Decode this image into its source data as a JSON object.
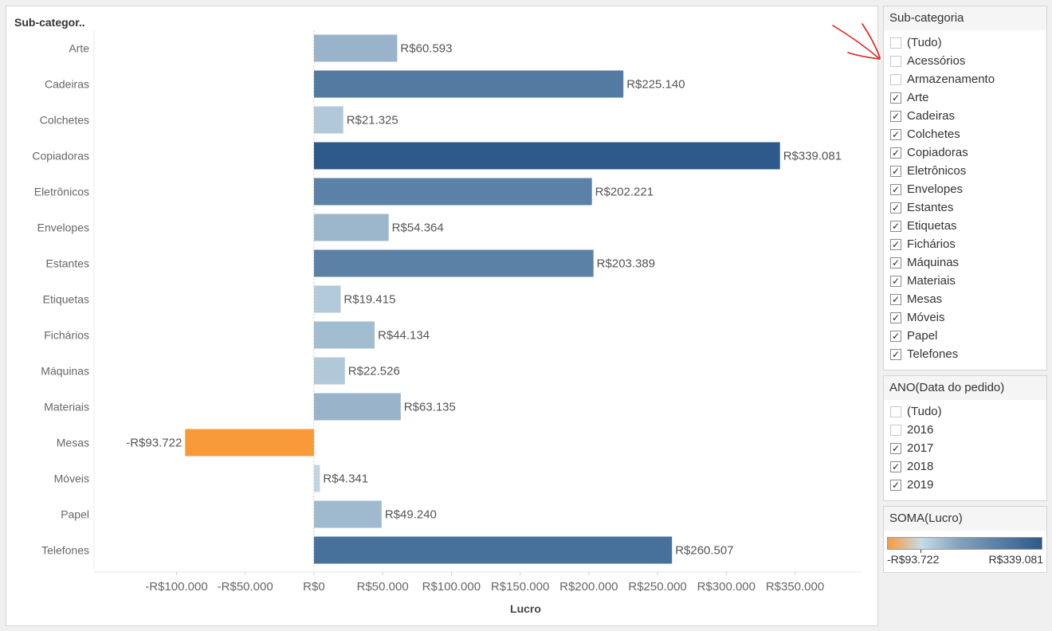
{
  "chart_data": {
    "type": "bar",
    "orientation": "horizontal",
    "row_header": "Sub-categor..",
    "categories": [
      "Arte",
      "Cadeiras",
      "Colchetes",
      "Copiadoras",
      "Eletrônicos",
      "Envelopes",
      "Estantes",
      "Etiquetas",
      "Fichários",
      "Máquinas",
      "Materiais",
      "Mesas",
      "Móveis",
      "Papel",
      "Telefones"
    ],
    "values": [
      60593,
      225140,
      21325,
      339081,
      202221,
      54364,
      203389,
      19415,
      44134,
      22526,
      63135,
      -93722,
      4341,
      49240,
      260507
    ],
    "value_labels": [
      "R$60.593",
      "R$225.140",
      "R$21.325",
      "R$339.081",
      "R$202.221",
      "R$54.364",
      "R$203.389",
      "R$19.415",
      "R$44.134",
      "R$22.526",
      "R$63.135",
      "-R$93.722",
      "R$4.341",
      "R$49.240",
      "R$260.507"
    ],
    "xlabel": "Lucro",
    "x_ticks": [
      -100000,
      -50000,
      0,
      50000,
      100000,
      150000,
      200000,
      250000,
      300000,
      350000
    ],
    "x_tick_labels": [
      "-R$100.000",
      "-R$50.000",
      "R$0",
      "R$50.000",
      "R$100.000",
      "R$150.000",
      "R$200.000",
      "R$250.000",
      "R$300.000",
      "R$350.000"
    ],
    "xlim": [
      -160000,
      410000
    ],
    "color_scale": {
      "min_color": "#f89a3a",
      "mid_color": "#c7dbe6",
      "max_color": "#2d5a8a"
    }
  },
  "filters": {
    "subcategoria": {
      "title": "Sub-categoria",
      "items": [
        {
          "label": "(Tudo)",
          "checked": false
        },
        {
          "label": "Acessórios",
          "checked": false
        },
        {
          "label": "Armazenamento",
          "checked": false
        },
        {
          "label": "Arte",
          "checked": true
        },
        {
          "label": "Cadeiras",
          "checked": true
        },
        {
          "label": "Colchetes",
          "checked": true
        },
        {
          "label": "Copiadoras",
          "checked": true
        },
        {
          "label": "Eletrônicos",
          "checked": true
        },
        {
          "label": "Envelopes",
          "checked": true
        },
        {
          "label": "Estantes",
          "checked": true
        },
        {
          "label": "Etiquetas",
          "checked": true
        },
        {
          "label": "Fichários",
          "checked": true
        },
        {
          "label": "Máquinas",
          "checked": true
        },
        {
          "label": "Materiais",
          "checked": true
        },
        {
          "label": "Mesas",
          "checked": true
        },
        {
          "label": "Móveis",
          "checked": true
        },
        {
          "label": "Papel",
          "checked": true
        },
        {
          "label": "Telefones",
          "checked": true
        }
      ]
    },
    "ano": {
      "title": "ANO(Data do pedido)",
      "items": [
        {
          "label": "(Tudo)",
          "checked": false
        },
        {
          "label": "2016",
          "checked": false
        },
        {
          "label": "2017",
          "checked": true
        },
        {
          "label": "2018",
          "checked": true
        },
        {
          "label": "2019",
          "checked": true
        }
      ]
    }
  },
  "legend": {
    "title": "SOMA(Lucro)",
    "min_label": "-R$93.722",
    "max_label": "R$339.081"
  },
  "annotation_color": "#e0201b"
}
